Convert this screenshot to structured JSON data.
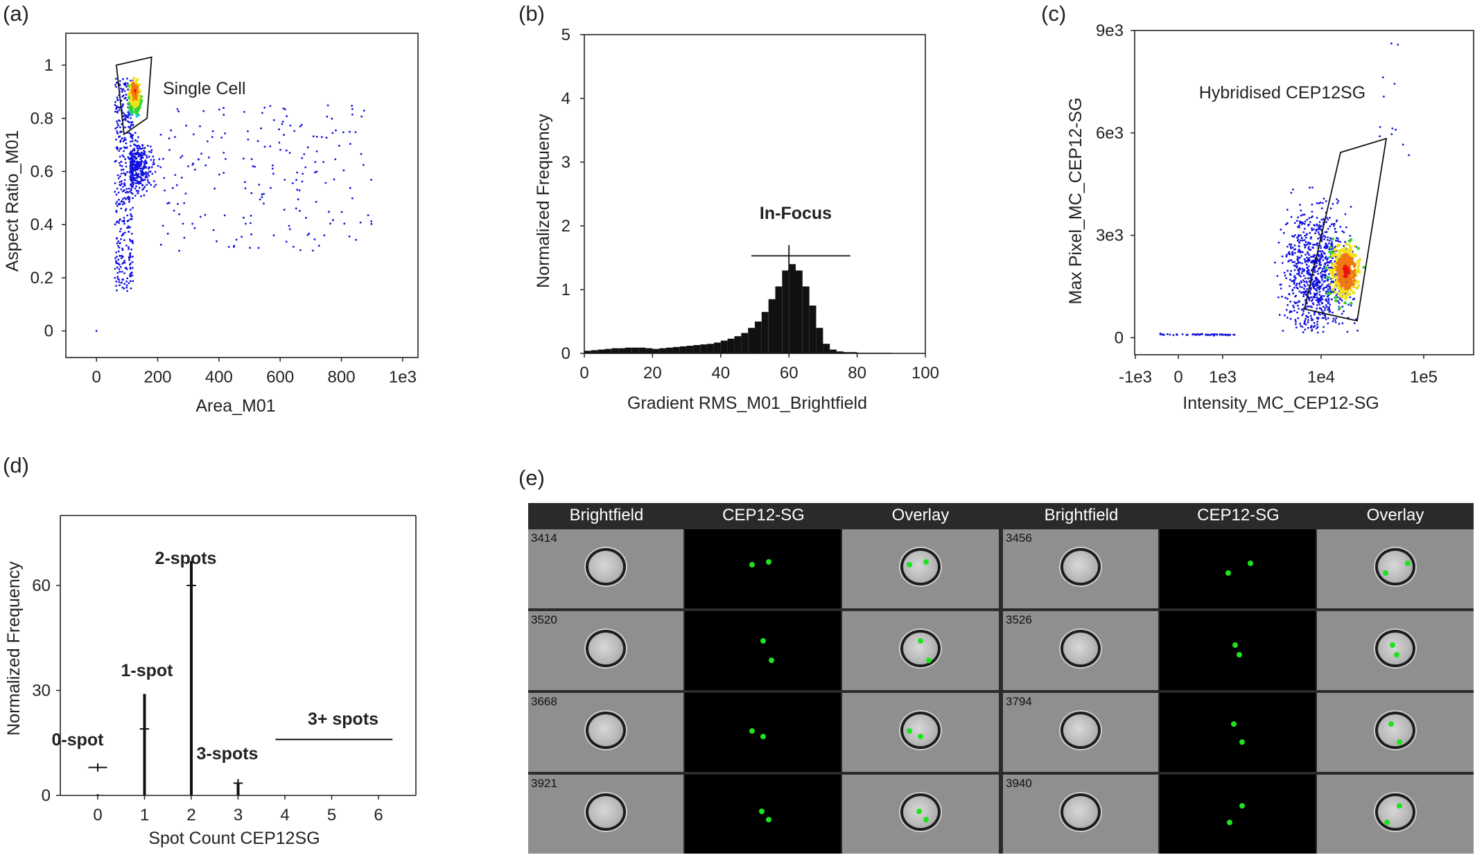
{
  "panels": [
    "(a)",
    "(b)",
    "(c)",
    "(d)",
    "(e)"
  ],
  "chart_data": [
    {
      "type": "scatter",
      "panel": "(a)",
      "xlabel": "Area_M01",
      "ylabel": "Aspect Ratio_M01",
      "xlim": [
        -100,
        1050
      ],
      "ylim": [
        -0.1,
        1.12
      ],
      "xticks": [
        "0",
        "200",
        "400",
        "600",
        "800",
        "1e3"
      ],
      "xtick_values": [
        0,
        200,
        400,
        600,
        800,
        1000
      ],
      "yticks": [
        "0",
        "0.2",
        "0.4",
        "0.6",
        "0.8",
        "1"
      ],
      "ytick_values": [
        0,
        0.2,
        0.4,
        0.6,
        0.8,
        1.0
      ],
      "gate_label": "Single Cell",
      "gate_polygon": [
        [
          65,
          1.0
        ],
        [
          180,
          1.03
        ],
        [
          165,
          0.8
        ],
        [
          90,
          0.74
        ]
      ],
      "point_color": "#1010e0",
      "density_colors": [
        "#1010e0",
        "#22c8e8",
        "#2ed42e",
        "#f0e21a",
        "#f07a10",
        "#ee1111"
      ]
    },
    {
      "type": "bar",
      "panel": "(b)",
      "xlabel": "Gradient RMS_M01_Brightfield",
      "ylabel": "Normalized Frequency",
      "xlim": [
        0,
        100
      ],
      "ylim": [
        0,
        5
      ],
      "xticks": [
        "0",
        "20",
        "40",
        "60",
        "80",
        "100"
      ],
      "xtick_values": [
        0,
        20,
        40,
        60,
        80,
        100
      ],
      "yticks": [
        "0",
        "1",
        "2",
        "3",
        "4",
        "5"
      ],
      "ytick_values": [
        0,
        1,
        2,
        3,
        4,
        5
      ],
      "gate_label": "In-Focus",
      "gate_range": [
        49,
        78
      ],
      "gate_level": 1.53,
      "peak_marker_x": 60,
      "peak_marker_y": 1.7,
      "bin_centers": [
        1,
        3,
        5,
        7,
        9,
        11,
        13,
        15,
        17,
        19,
        21,
        23,
        25,
        27,
        29,
        31,
        33,
        35,
        37,
        39,
        41,
        43,
        45,
        47,
        49,
        51,
        53,
        55,
        57,
        59,
        61,
        63,
        65,
        67,
        69,
        71,
        73,
        75,
        77,
        79,
        81,
        83,
        85,
        87,
        89,
        91,
        93,
        95,
        97,
        99
      ],
      "values": [
        0.04,
        0.05,
        0.06,
        0.07,
        0.08,
        0.08,
        0.09,
        0.09,
        0.09,
        0.08,
        0.07,
        0.08,
        0.09,
        0.1,
        0.11,
        0.12,
        0.13,
        0.14,
        0.15,
        0.17,
        0.2,
        0.23,
        0.27,
        0.32,
        0.4,
        0.5,
        0.65,
        0.85,
        1.05,
        1.3,
        1.4,
        1.3,
        1.05,
        0.75,
        0.4,
        0.15,
        0.06,
        0.03,
        0.02,
        0.02,
        0.01,
        0.01,
        0.01,
        0.01,
        0.01,
        0.0,
        0.0,
        0.0,
        0.0,
        0.0
      ]
    },
    {
      "type": "scatter",
      "panel": "(c)",
      "xlabel": "Intensity_MC_CEP12-SG",
      "ylabel": "Max Pixel_MC_CEP12-SG",
      "xticks": [
        "-1e3",
        "0",
        "1e3",
        "1e4",
        "1e5"
      ],
      "yticks": [
        "0",
        "3e3",
        "6e3",
        "9e3"
      ],
      "ytick_values": [
        0,
        3000,
        6000,
        9000
      ],
      "ylim": [
        -500,
        9000
      ],
      "gate_label": "Hybridised CEP12SG",
      "point_color": "#1010e0",
      "density_colors": [
        "#1010e0",
        "#22c8e8",
        "#2ed42e",
        "#f0e21a",
        "#f07a10",
        "#ee1111"
      ]
    },
    {
      "type": "bar",
      "panel": "(d)",
      "xlabel": "Spot Count CEP12SG",
      "ylabel": "Normalized Frequency",
      "xlim": [
        -0.8,
        6.8
      ],
      "ylim": [
        0,
        80
      ],
      "xticks": [
        "0",
        "1",
        "2",
        "3",
        "4",
        "5",
        "6"
      ],
      "xtick_values": [
        0,
        1,
        2,
        3,
        4,
        5,
        6
      ],
      "yticks": [
        "0",
        "30",
        "60"
      ],
      "ytick_values": [
        0,
        30,
        60
      ],
      "categories": [
        0,
        1,
        2,
        3
      ],
      "values": [
        0.3,
        29,
        67,
        3.5
      ],
      "gates": [
        {
          "label": "0-spot",
          "x": [
            -0.2,
            0.2
          ],
          "y": 8
        },
        {
          "label": "1-spot",
          "x": [
            0.9,
            1.1
          ],
          "y": 19
        },
        {
          "label": "2-spots",
          "x": [
            1.9,
            2.1
          ],
          "y": 60
        },
        {
          "label": "3-spots",
          "x": [
            2.9,
            3.1
          ],
          "y": 3.5
        },
        {
          "label": "3+ spots",
          "x": [
            3.8,
            6.3
          ],
          "y": 16
        }
      ]
    }
  ],
  "gallery": {
    "headers": [
      "Brightfield",
      "CEP12-SG",
      "Overlay",
      "Brightfield",
      "CEP12-SG",
      "Overlay"
    ],
    "left_ids": [
      "3414",
      "3520",
      "3668",
      "3921"
    ],
    "right_ids": [
      "3456",
      "3526",
      "3794",
      "3940"
    ]
  }
}
